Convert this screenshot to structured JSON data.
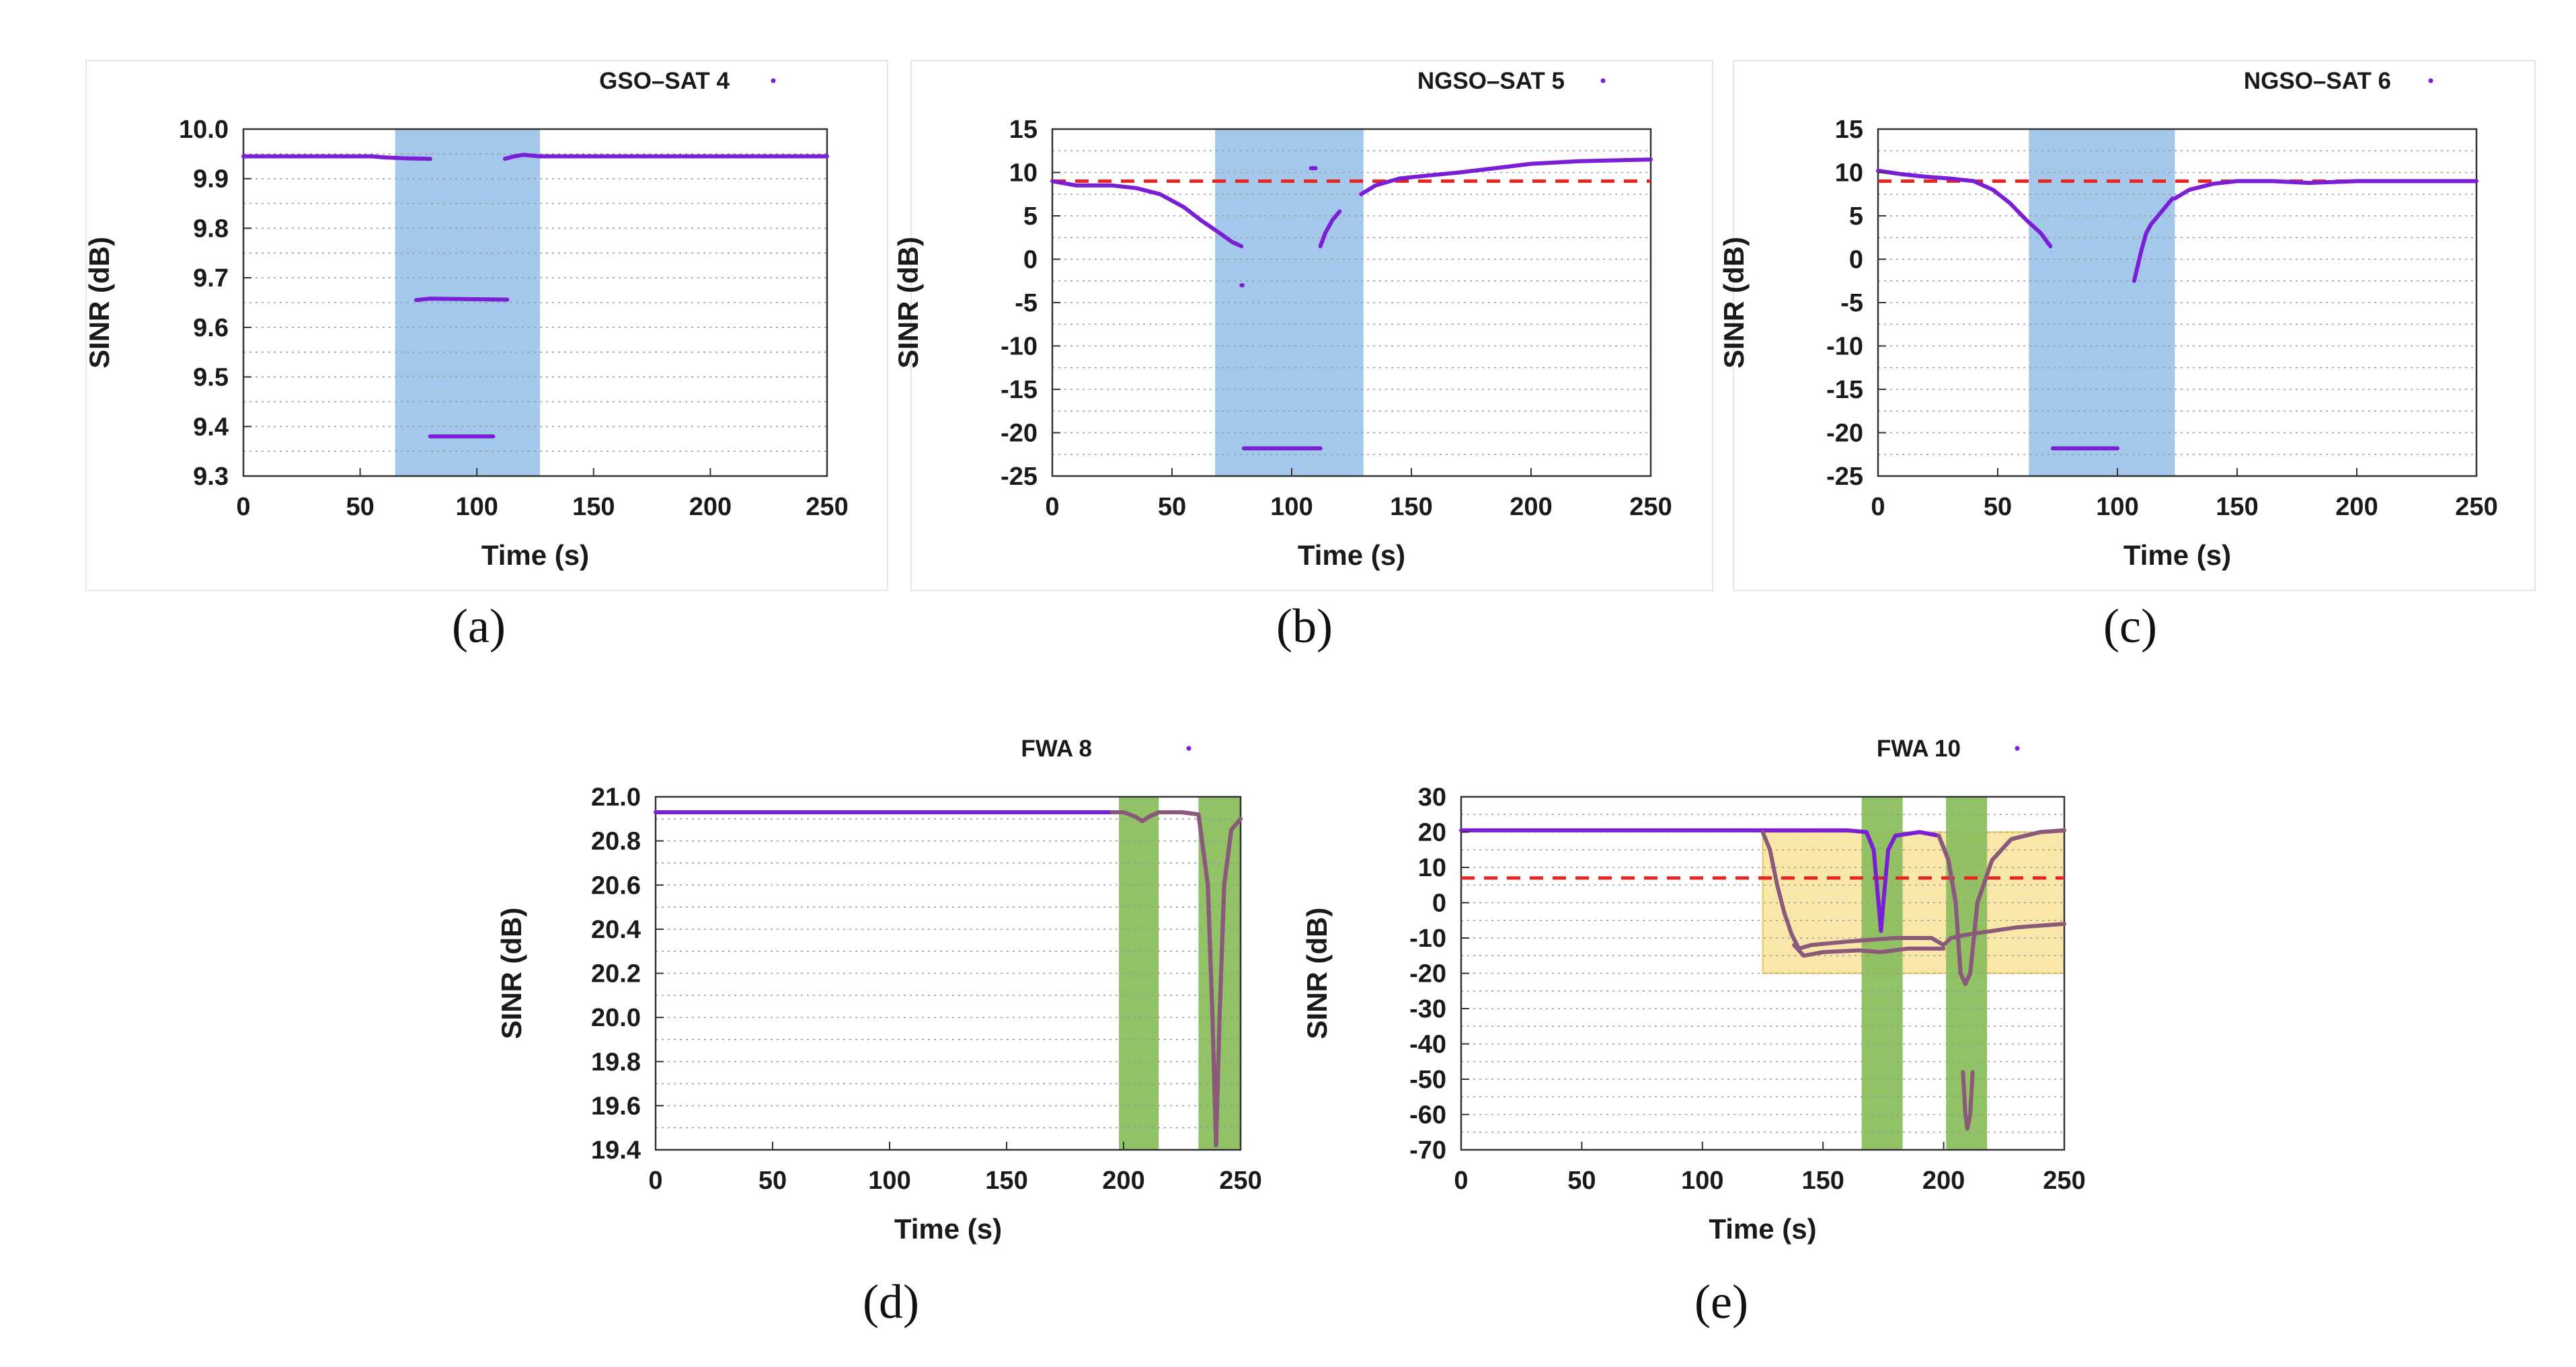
{
  "colors": {
    "series": "#7a1fd6",
    "threshold": "#e8261f",
    "blue_region": "#9fc5ea",
    "green_region": "#8bbf5e",
    "yellow_region": "#f7e39a",
    "trace": "#8a5a78"
  },
  "chart_data": [
    {
      "id": "a",
      "caption": "(a)",
      "type": "scatter",
      "legend": "GSO–SAT 4",
      "xlabel": "Time (s)",
      "ylabel": "SINR (dB)",
      "xlim": [
        0,
        250
      ],
      "ylim": [
        9.3,
        10.0
      ],
      "xticks": [
        0,
        50,
        100,
        150,
        200,
        250
      ],
      "yticks": [
        9.3,
        9.4,
        9.5,
        9.6,
        9.7,
        9.8,
        9.9,
        10.0
      ],
      "ytick_labels": [
        "9.3",
        "9.4",
        "9.5",
        "9.6",
        "9.7",
        "9.8",
        "9.9",
        "10.0"
      ],
      "minor_grid_step": 0.05,
      "threshold": null,
      "regions": [
        {
          "x": [
            65,
            127
          ],
          "y": "full",
          "color": "blue"
        }
      ],
      "series": [
        {
          "name": "GSO-SAT 4",
          "points": [
            [
              0,
              9.945
            ],
            [
              55,
              9.945
            ],
            [
              60,
              9.943
            ],
            [
              65,
              9.942
            ],
            [
              70,
              9.941
            ],
            [
              80,
              9.94
            ]
          ]
        },
        {
          "name": "GSO-SAT 4 (b)",
          "points": [
            [
              112,
              9.94
            ],
            [
              116,
              9.945
            ],
            [
              120,
              9.948
            ],
            [
              127,
              9.945
            ],
            [
              250,
              9.945
            ]
          ]
        },
        {
          "name": "GSO-SAT 4 (c)",
          "points": [
            [
              74,
              9.655
            ],
            [
              80,
              9.658
            ],
            [
              113,
              9.656
            ]
          ]
        },
        {
          "name": "GSO-SAT 4 (d)",
          "points": [
            [
              80,
              9.38
            ],
            [
              107,
              9.38
            ]
          ]
        }
      ]
    },
    {
      "id": "b",
      "caption": "(b)",
      "type": "scatter",
      "legend": "NGSO–SAT 5",
      "xlabel": "Time (s)",
      "ylabel": "SINR (dB)",
      "xlim": [
        0,
        250
      ],
      "ylim": [
        -25,
        15
      ],
      "xticks": [
        0,
        50,
        100,
        150,
        200,
        250
      ],
      "yticks": [
        -25,
        -20,
        -15,
        -10,
        -5,
        0,
        5,
        10,
        15
      ],
      "ytick_labels": [
        "-25",
        "-20",
        "-15",
        "-10",
        "-5",
        "0",
        "5",
        "10",
        "15"
      ],
      "minor_grid_step": 2.5,
      "threshold": 9,
      "regions": [
        {
          "x": [
            68,
            130
          ],
          "y": "full",
          "color": "blue"
        }
      ],
      "series": [
        {
          "name": "NGSO-SAT 5",
          "points": [
            [
              0,
              9
            ],
            [
              10,
              8.5
            ],
            [
              25,
              8.5
            ],
            [
              35,
              8.2
            ],
            [
              45,
              7.5
            ],
            [
              55,
              6
            ],
            [
              62,
              4.5
            ],
            [
              70,
              3
            ],
            [
              75,
              2
            ],
            [
              79,
              1.5
            ]
          ]
        },
        {
          "name": "NGSO-SAT 5 (b)",
          "points": [
            [
              112,
              1.5
            ],
            [
              114,
              3
            ],
            [
              117,
              4.5
            ],
            [
              120,
              5.5
            ]
          ]
        },
        {
          "name": "NGSO-SAT 5 (c)",
          "points": [
            [
              108,
              10.5
            ],
            [
              110,
              10.5
            ]
          ]
        },
        {
          "name": "NGSO-SAT 5 (d)",
          "points": [
            [
              129,
              7.5
            ],
            [
              135,
              8.5
            ],
            [
              145,
              9.3
            ],
            [
              155,
              9.6
            ],
            [
              170,
              10
            ],
            [
              185,
              10.5
            ],
            [
              200,
              11
            ],
            [
              220,
              11.3
            ],
            [
              250,
              11.5
            ]
          ]
        },
        {
          "name": "NGSO-SAT 5 (e)",
          "points": [
            [
              80,
              -21.8
            ],
            [
              112,
              -21.8
            ]
          ]
        },
        {
          "name": "NGSO-SAT 5 (f)",
          "points": [
            [
              79,
              -3
            ],
            [
              79.5,
              -3
            ]
          ]
        }
      ]
    },
    {
      "id": "c",
      "caption": "(c)",
      "type": "scatter",
      "legend": "NGSO–SAT 6",
      "xlabel": "Time (s)",
      "ylabel": "SINR (dB)",
      "xlim": [
        0,
        250
      ],
      "ylim": [
        -25,
        15
      ],
      "xticks": [
        0,
        50,
        100,
        150,
        200,
        250
      ],
      "yticks": [
        -25,
        -20,
        -15,
        -10,
        -5,
        0,
        5,
        10,
        15
      ],
      "ytick_labels": [
        "-25",
        "-20",
        "-15",
        "-10",
        "-5",
        "0",
        "5",
        "10",
        "15"
      ],
      "minor_grid_step": 2.5,
      "threshold": 9,
      "regions": [
        {
          "x": [
            63,
            124
          ],
          "y": "full",
          "color": "blue"
        }
      ],
      "series": [
        {
          "name": "NGSO-SAT 6",
          "points": [
            [
              0,
              10.2
            ],
            [
              10,
              9.8
            ],
            [
              20,
              9.5
            ],
            [
              30,
              9.3
            ],
            [
              40,
              9
            ],
            [
              48,
              8
            ],
            [
              55,
              6.5
            ],
            [
              62,
              4.5
            ],
            [
              68,
              3
            ],
            [
              72,
              1.5
            ]
          ]
        },
        {
          "name": "NGSO-SAT 6 (b)",
          "points": [
            [
              107,
              -2.5
            ],
            [
              110,
              1
            ],
            [
              112,
              3
            ],
            [
              114,
              4
            ],
            [
              117,
              5
            ],
            [
              120,
              6
            ],
            [
              123,
              7
            ]
          ]
        },
        {
          "name": "NGSO-SAT 6 (c)",
          "points": [
            [
              124,
              7
            ],
            [
              130,
              8
            ],
            [
              140,
              8.7
            ],
            [
              150,
              9
            ],
            [
              165,
              9
            ],
            [
              180,
              8.8
            ],
            [
              200,
              9
            ],
            [
              230,
              9
            ],
            [
              250,
              9
            ]
          ]
        },
        {
          "name": "NGSO-SAT 6 (d)",
          "points": [
            [
              73,
              -21.8
            ],
            [
              100,
              -21.8
            ]
          ]
        }
      ]
    },
    {
      "id": "d",
      "caption": "(d)",
      "type": "scatter",
      "legend": "FWA 8",
      "xlabel": "Time (s)",
      "ylabel": "SINR (dB)",
      "xlim": [
        0,
        250
      ],
      "ylim": [
        19.4,
        21.0
      ],
      "xticks": [
        0,
        50,
        100,
        150,
        200,
        250
      ],
      "yticks": [
        19.4,
        19.6,
        19.8,
        20.0,
        20.2,
        20.4,
        20.6,
        20.8,
        21.0
      ],
      "ytick_labels": [
        "19.4",
        "19.6",
        "19.8",
        "20.0",
        "20.2",
        "20.4",
        "20.6",
        "20.8",
        "21.0"
      ],
      "minor_grid_step": 0.1,
      "threshold": null,
      "regions": [
        {
          "x": [
            198,
            215
          ],
          "y": "full",
          "color": "green"
        },
        {
          "x": [
            232,
            250
          ],
          "y": "full",
          "color": "green"
        }
      ],
      "series": [
        {
          "name": "FWA 8",
          "points": [
            [
              0,
              20.93
            ],
            [
              195,
              20.93
            ],
            [
              200,
              20.93
            ],
            [
              205,
              20.91
            ],
            [
              208,
              20.89
            ],
            [
              211,
              20.91
            ],
            [
              215,
              20.93
            ],
            [
              225,
              20.93
            ],
            [
              232,
              20.92
            ],
            [
              236,
              20.6
            ],
            [
              238,
              20.0
            ],
            [
              239.5,
              19.42
            ],
            [
              241,
              20.0
            ],
            [
              243,
              20.6
            ],
            [
              246,
              20.85
            ],
            [
              250,
              20.9
            ]
          ]
        }
      ]
    },
    {
      "id": "e",
      "caption": "(e)",
      "type": "scatter",
      "legend": "FWA 10",
      "xlabel": "Time (s)",
      "ylabel": "SINR (dB)",
      "xlim": [
        0,
        250
      ],
      "ylim": [
        -70,
        30
      ],
      "xticks": [
        0,
        50,
        100,
        150,
        200,
        250
      ],
      "yticks": [
        -70,
        -60,
        -50,
        -40,
        -30,
        -20,
        -10,
        0,
        10,
        20,
        30
      ],
      "ytick_labels": [
        "-70",
        "-60",
        "-50",
        "-40",
        "-30",
        "-20",
        "-10",
        "0",
        "10",
        "20",
        "30"
      ],
      "minor_grid_step": 5,
      "threshold": 7,
      "regions": [
        {
          "x": [
            125,
            250
          ],
          "y": [
            -20,
            20
          ],
          "color": "yellow"
        },
        {
          "x": [
            166,
            183
          ],
          "y": "full",
          "color": "green"
        },
        {
          "x": [
            201,
            218
          ],
          "y": "full",
          "color": "green"
        }
      ],
      "series": [
        {
          "name": "FWA 10",
          "points": [
            [
              0,
              20.5
            ],
            [
              120,
              20.5
            ],
            [
              160,
              20.5
            ],
            [
              168,
              20
            ],
            [
              171,
              15
            ],
            [
              173,
              0
            ],
            [
              174,
              -8
            ],
            [
              175,
              0
            ],
            [
              177,
              15
            ],
            [
              180,
              19
            ],
            [
              190,
              20
            ],
            [
              198,
              19
            ],
            [
              202,
              12
            ],
            [
              205,
              0
            ],
            [
              207,
              -20
            ],
            [
              209,
              -23
            ],
            [
              211,
              -20
            ],
            [
              214,
              0
            ],
            [
              220,
              12
            ],
            [
              228,
              18
            ],
            [
              240,
              20
            ],
            [
              250,
              20.5
            ]
          ]
        },
        {
          "name": "FWA 10 (b)",
          "points": [
            [
              125,
              20
            ],
            [
              128,
              15
            ],
            [
              131,
              5
            ],
            [
              134,
              -3
            ],
            [
              137,
              -9
            ],
            [
              140,
              -13
            ],
            [
              145,
              -12
            ],
            [
              160,
              -11
            ],
            [
              170,
              -10.5
            ],
            [
              180,
              -10
            ],
            [
              195,
              -10
            ],
            [
              200,
              -12
            ],
            [
              203,
              -10
            ],
            [
              210,
              -9
            ],
            [
              230,
              -7
            ],
            [
              250,
              -6
            ]
          ]
        },
        {
          "name": "FWA 10 (c)",
          "points": [
            [
              138,
              -12
            ],
            [
              142,
              -15
            ],
            [
              150,
              -14
            ],
            [
              165,
              -13.5
            ],
            [
              174,
              -14
            ],
            [
              185,
              -13
            ],
            [
              200,
              -13
            ]
          ]
        },
        {
          "name": "FWA 10 (d)",
          "points": [
            [
              208,
              -48
            ],
            [
              209,
              -60
            ],
            [
              209.8,
              -64
            ],
            [
              211,
              -60
            ],
            [
              212,
              -48
            ]
          ]
        }
      ]
    }
  ]
}
